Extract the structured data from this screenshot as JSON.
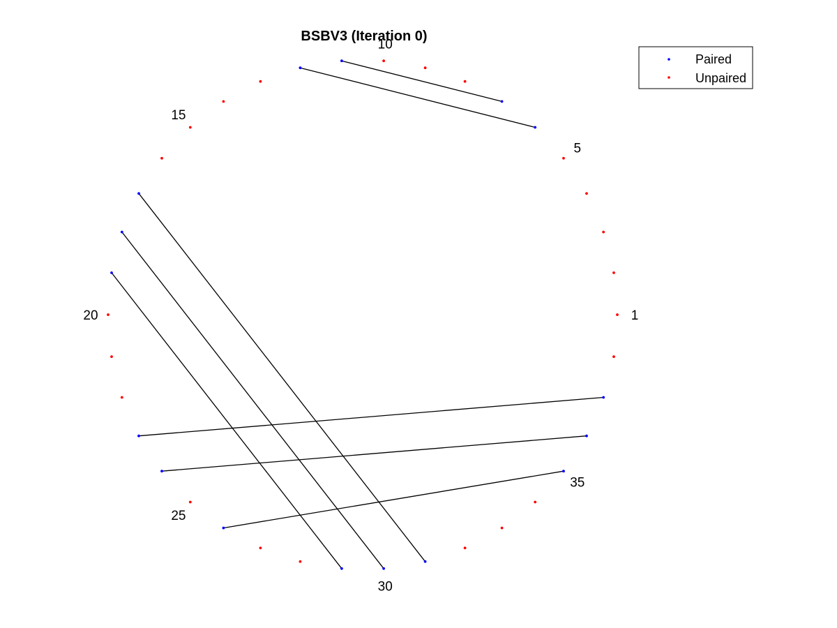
{
  "title": "BSBV3 (Iteration 0)",
  "legend": {
    "paired_label": "Paired",
    "unpaired_label": "Unpaired",
    "placement": "top-right"
  },
  "colors": {
    "paired": "#0000ff",
    "unpaired": "#ff0000",
    "pair_line": "#000000"
  },
  "node_count": 38,
  "index_labels": [
    "1",
    "5",
    "10",
    "15",
    "20",
    "25",
    "30",
    "35"
  ],
  "pairs": [
    [
      6,
      12
    ],
    [
      7,
      11
    ],
    [
      17,
      31
    ],
    [
      18,
      30
    ],
    [
      19,
      29
    ],
    [
      23,
      37
    ],
    [
      24,
      36
    ],
    [
      26,
      35
    ]
  ]
}
